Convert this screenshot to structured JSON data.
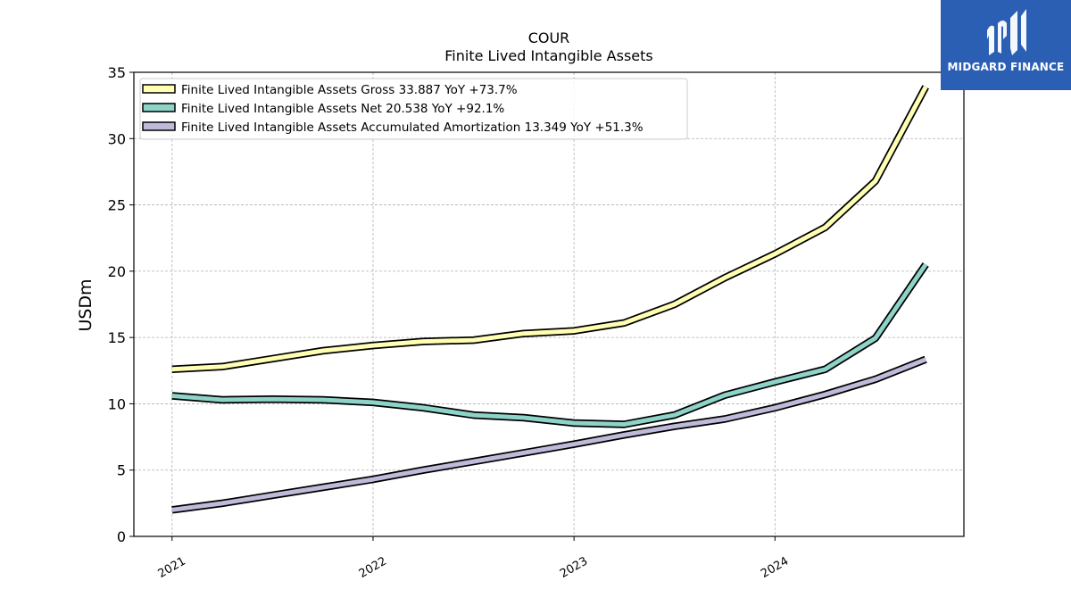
{
  "logo": {
    "text": "MIDGARD FINANCE",
    "icon": "midgard-logo-icon",
    "background": "#2b5fb4"
  },
  "chart_data": {
    "type": "line",
    "title": "COUR",
    "subtitle": "Finite Lived Intangible Assets",
    "ylabel": "USDm",
    "xlabel": "",
    "ylim": [
      0,
      35
    ],
    "xlim": [
      2020.81,
      2024.94
    ],
    "yticks": [
      0,
      5,
      10,
      15,
      20,
      25,
      30,
      35
    ],
    "xticks": [
      {
        "value": 2021.0,
        "label": "2021"
      },
      {
        "value": 2022.0,
        "label": "2022"
      },
      {
        "value": 2023.0,
        "label": "2023"
      },
      {
        "value": 2024.0,
        "label": "2024"
      }
    ],
    "grid": true,
    "legend_position": "top-left",
    "x": [
      2021.0,
      2021.25,
      2021.5,
      2021.75,
      2022.0,
      2022.25,
      2022.5,
      2022.75,
      2023.0,
      2023.25,
      2023.5,
      2023.75,
      2024.0,
      2024.25,
      2024.5,
      2024.75
    ],
    "series": [
      {
        "name": "Finite Lived Intangible Assets Gross",
        "legend_label": "Finite Lived Intangible Assets Gross  33.887 YoY +73.7%",
        "color": "#ffffb3",
        "values": [
          12.6,
          12.8,
          13.4,
          14.0,
          14.4,
          14.7,
          14.8,
          15.3,
          15.5,
          16.1,
          17.5,
          19.5,
          21.3,
          23.3,
          26.8,
          33.9
        ]
      },
      {
        "name": "Finite Lived Intangible Assets Net",
        "legend_label": "Finite Lived Intangible Assets Net  20.538 YoY +92.1%",
        "color": "#8dd3c7",
        "values": [
          10.6,
          10.3,
          10.35,
          10.3,
          10.1,
          9.7,
          9.15,
          8.95,
          8.55,
          8.45,
          9.15,
          10.65,
          11.65,
          12.6,
          14.95,
          20.5
        ]
      },
      {
        "name": "Finite Lived Intangible Assets Accumulated Amortization",
        "legend_label": "Finite Lived Intangible Assets Accumulated Amortization  13.349 YoY +51.3%",
        "color": "#bebada",
        "values": [
          2.0,
          2.5,
          3.1,
          3.7,
          4.3,
          5.0,
          5.65,
          6.3,
          6.95,
          7.65,
          8.3,
          8.85,
          9.7,
          10.7,
          11.85,
          13.35
        ]
      }
    ]
  }
}
